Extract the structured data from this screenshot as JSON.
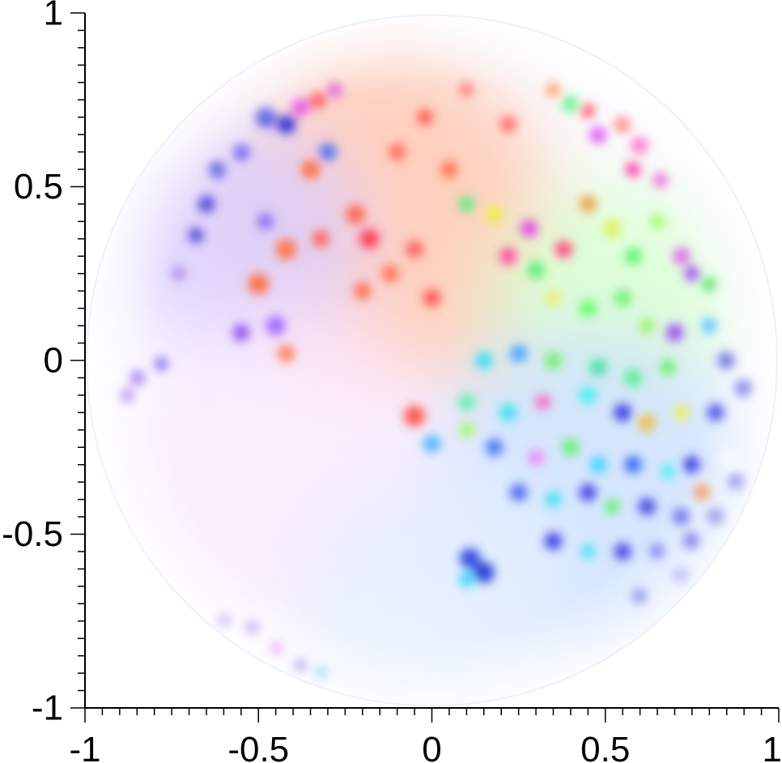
{
  "chart_data": {
    "type": "heatmap",
    "title": "",
    "xlabel": "",
    "ylabel": "",
    "xlim": [
      -1,
      1
    ],
    "ylim": [
      -1,
      1
    ],
    "grid": false,
    "legend": "none",
    "domain_shape": "unit disk",
    "x_ticks": [
      -1,
      -0.5,
      0,
      0.5,
      1
    ],
    "x_tick_labels": [
      "-1",
      "-0.5",
      "0",
      "0.5",
      "1"
    ],
    "y_ticks": [
      1,
      0.5,
      0,
      -0.5,
      -1
    ],
    "y_tick_labels": [
      "1",
      "0.5",
      "0",
      "-0.5",
      "-1"
    ],
    "colors": {
      "axis": "#000000",
      "background": "#ffffff",
      "disk_edge": "#eef0fb"
    },
    "blobs": [
      {
        "x": -0.48,
        "y": 0.7,
        "c": "#3535e0",
        "r": 0.03
      },
      {
        "x": -0.42,
        "y": 0.68,
        "c": "#2a2ad8",
        "r": 0.028
      },
      {
        "x": -0.38,
        "y": 0.73,
        "c": "#e040e0",
        "r": 0.025
      },
      {
        "x": -0.33,
        "y": 0.75,
        "c": "#ff5050",
        "r": 0.025
      },
      {
        "x": -0.28,
        "y": 0.78,
        "c": "#e050d0",
        "r": 0.022
      },
      {
        "x": -0.3,
        "y": 0.6,
        "c": "#4a6af0",
        "r": 0.025
      },
      {
        "x": -0.35,
        "y": 0.55,
        "c": "#ff6f40",
        "r": 0.028
      },
      {
        "x": -0.55,
        "y": 0.6,
        "c": "#6a60f0",
        "r": 0.025
      },
      {
        "x": -0.62,
        "y": 0.55,
        "c": "#5050e0",
        "r": 0.025
      },
      {
        "x": -0.65,
        "y": 0.45,
        "c": "#5040d8",
        "r": 0.025
      },
      {
        "x": -0.68,
        "y": 0.36,
        "c": "#5040d8",
        "r": 0.022
      },
      {
        "x": -0.48,
        "y": 0.4,
        "c": "#8a70f0",
        "r": 0.025
      },
      {
        "x": -0.42,
        "y": 0.32,
        "c": "#ff7040",
        "r": 0.03
      },
      {
        "x": -0.5,
        "y": 0.22,
        "c": "#ff6a3a",
        "r": 0.03
      },
      {
        "x": -0.45,
        "y": 0.1,
        "c": "#9a60ff",
        "r": 0.028
      },
      {
        "x": -0.55,
        "y": 0.08,
        "c": "#8a50f0",
        "r": 0.025
      },
      {
        "x": -0.42,
        "y": 0.02,
        "c": "#ff7a50",
        "r": 0.025
      },
      {
        "x": -0.32,
        "y": 0.35,
        "c": "#ff5f4f",
        "r": 0.025
      },
      {
        "x": -0.22,
        "y": 0.42,
        "c": "#ff6050",
        "r": 0.028
      },
      {
        "x": -0.18,
        "y": 0.35,
        "c": "#ff3050",
        "r": 0.028
      },
      {
        "x": -0.2,
        "y": 0.2,
        "c": "#ff6a4a",
        "r": 0.025
      },
      {
        "x": -0.12,
        "y": 0.25,
        "c": "#ff7050",
        "r": 0.025
      },
      {
        "x": -0.05,
        "y": 0.32,
        "c": "#ff5a60",
        "r": 0.025
      },
      {
        "x": 0.0,
        "y": 0.18,
        "c": "#ff4a4a",
        "r": 0.025
      },
      {
        "x": -0.1,
        "y": 0.6,
        "c": "#ff6a5a",
        "r": 0.025
      },
      {
        "x": -0.02,
        "y": 0.7,
        "c": "#ff4a4a",
        "r": 0.022
      },
      {
        "x": 0.05,
        "y": 0.55,
        "c": "#ff7050",
        "r": 0.025
      },
      {
        "x": 0.1,
        "y": 0.78,
        "c": "#ff8080",
        "r": 0.022
      },
      {
        "x": 0.22,
        "y": 0.68,
        "c": "#ff6a6a",
        "r": 0.025
      },
      {
        "x": 0.35,
        "y": 0.78,
        "c": "#ff8a40",
        "r": 0.022
      },
      {
        "x": 0.4,
        "y": 0.74,
        "c": "#40f080",
        "r": 0.025
      },
      {
        "x": 0.45,
        "y": 0.72,
        "c": "#ff3050",
        "r": 0.022
      },
      {
        "x": 0.48,
        "y": 0.65,
        "c": "#e050f0",
        "r": 0.025
      },
      {
        "x": 0.55,
        "y": 0.68,
        "c": "#ff6060",
        "r": 0.025
      },
      {
        "x": 0.6,
        "y": 0.62,
        "c": "#ff40c0",
        "r": 0.025
      },
      {
        "x": 0.58,
        "y": 0.55,
        "c": "#ff30a0",
        "r": 0.022
      },
      {
        "x": 0.66,
        "y": 0.52,
        "c": "#f050d0",
        "r": 0.022
      },
      {
        "x": 0.1,
        "y": 0.45,
        "c": "#50f080",
        "r": 0.022
      },
      {
        "x": 0.18,
        "y": 0.42,
        "c": "#f0f040",
        "r": 0.025
      },
      {
        "x": 0.22,
        "y": 0.3,
        "c": "#ff40a0",
        "r": 0.025
      },
      {
        "x": 0.28,
        "y": 0.38,
        "c": "#e040e0",
        "r": 0.025
      },
      {
        "x": 0.3,
        "y": 0.26,
        "c": "#50f070",
        "r": 0.025
      },
      {
        "x": 0.38,
        "y": 0.32,
        "c": "#ff4080",
        "r": 0.025
      },
      {
        "x": 0.45,
        "y": 0.45,
        "c": "#f0a040",
        "r": 0.025
      },
      {
        "x": 0.52,
        "y": 0.38,
        "c": "#e0f050",
        "r": 0.025
      },
      {
        "x": 0.58,
        "y": 0.3,
        "c": "#60f070",
        "r": 0.025
      },
      {
        "x": 0.65,
        "y": 0.4,
        "c": "#a0ff60",
        "r": 0.022
      },
      {
        "x": 0.72,
        "y": 0.3,
        "c": "#e060f0",
        "r": 0.025
      },
      {
        "x": 0.75,
        "y": 0.25,
        "c": "#9a40f0",
        "r": 0.022
      },
      {
        "x": 0.8,
        "y": 0.22,
        "c": "#50e060",
        "r": 0.022
      },
      {
        "x": 0.35,
        "y": 0.18,
        "c": "#f0f060",
        "r": 0.022
      },
      {
        "x": 0.45,
        "y": 0.15,
        "c": "#60ff60",
        "r": 0.025
      },
      {
        "x": 0.55,
        "y": 0.18,
        "c": "#70f070",
        "r": 0.025
      },
      {
        "x": 0.62,
        "y": 0.1,
        "c": "#a0f060",
        "r": 0.022
      },
      {
        "x": 0.7,
        "y": 0.08,
        "c": "#9a40f0",
        "r": 0.025
      },
      {
        "x": 0.8,
        "y": 0.1,
        "c": "#50c0ff",
        "r": 0.022
      },
      {
        "x": 0.15,
        "y": 0.0,
        "c": "#30e0f0",
        "r": 0.025
      },
      {
        "x": 0.25,
        "y": 0.02,
        "c": "#40a0ff",
        "r": 0.025
      },
      {
        "x": 0.35,
        "y": 0.0,
        "c": "#70f070",
        "r": 0.025
      },
      {
        "x": 0.48,
        "y": -0.02,
        "c": "#40e0a0",
        "r": 0.025
      },
      {
        "x": 0.58,
        "y": -0.05,
        "c": "#50f090",
        "r": 0.025
      },
      {
        "x": 0.68,
        "y": -0.02,
        "c": "#60f060",
        "r": 0.022
      },
      {
        "x": 0.85,
        "y": 0.0,
        "c": "#5050e0",
        "r": 0.025
      },
      {
        "x": 0.9,
        "y": -0.08,
        "c": "#3535e0",
        "r": 0.025
      },
      {
        "x": 0.1,
        "y": -0.12,
        "c": "#60f0b0",
        "r": 0.025
      },
      {
        "x": 0.22,
        "y": -0.15,
        "c": "#30e0f0",
        "r": 0.025
      },
      {
        "x": 0.32,
        "y": -0.12,
        "c": "#ff60c0",
        "r": 0.022
      },
      {
        "x": 0.45,
        "y": -0.1,
        "c": "#40f0f0",
        "r": 0.025
      },
      {
        "x": 0.55,
        "y": -0.15,
        "c": "#3030e0",
        "r": 0.025
      },
      {
        "x": 0.62,
        "y": -0.18,
        "c": "#f0c040",
        "r": 0.025
      },
      {
        "x": 0.72,
        "y": -0.15,
        "c": "#f0f050",
        "r": 0.022
      },
      {
        "x": 0.82,
        "y": -0.15,
        "c": "#3030e0",
        "r": 0.025
      },
      {
        "x": -0.05,
        "y": -0.16,
        "c": "#ff4a3a",
        "r": 0.03
      },
      {
        "x": 0.0,
        "y": -0.24,
        "c": "#40b0ff",
        "r": 0.025
      },
      {
        "x": 0.1,
        "y": -0.2,
        "c": "#a0ff60",
        "r": 0.022
      },
      {
        "x": 0.18,
        "y": -0.25,
        "c": "#3a70f0",
        "r": 0.025
      },
      {
        "x": 0.3,
        "y": -0.28,
        "c": "#f080f0",
        "r": 0.022
      },
      {
        "x": 0.4,
        "y": -0.25,
        "c": "#60f070",
        "r": 0.025
      },
      {
        "x": 0.48,
        "y": -0.3,
        "c": "#40d0ff",
        "r": 0.025
      },
      {
        "x": 0.58,
        "y": -0.3,
        "c": "#3060f0",
        "r": 0.025
      },
      {
        "x": 0.68,
        "y": -0.32,
        "c": "#50f0f0",
        "r": 0.022
      },
      {
        "x": 0.75,
        "y": -0.3,
        "c": "#3535e0",
        "r": 0.025
      },
      {
        "x": 0.85,
        "y": -0.28,
        "c": "#ffffff",
        "r": 0.02
      },
      {
        "x": 0.88,
        "y": -0.35,
        "c": "#2a2ad8",
        "r": 0.025
      },
      {
        "x": 0.78,
        "y": -0.38,
        "c": "#f08040",
        "r": 0.025
      },
      {
        "x": 0.25,
        "y": -0.38,
        "c": "#4060f0",
        "r": 0.025
      },
      {
        "x": 0.35,
        "y": -0.4,
        "c": "#50e0f0",
        "r": 0.025
      },
      {
        "x": 0.45,
        "y": -0.38,
        "c": "#3a3ae0",
        "r": 0.025
      },
      {
        "x": 0.52,
        "y": -0.42,
        "c": "#60f070",
        "r": 0.022
      },
      {
        "x": 0.62,
        "y": -0.42,
        "c": "#4040e0",
        "r": 0.025
      },
      {
        "x": 0.72,
        "y": -0.45,
        "c": "#5050e0",
        "r": 0.025
      },
      {
        "x": 0.82,
        "y": -0.45,
        "c": "#3030d8",
        "r": 0.025
      },
      {
        "x": 0.35,
        "y": -0.52,
        "c": "#3535e0",
        "r": 0.025
      },
      {
        "x": 0.45,
        "y": -0.55,
        "c": "#50e0f0",
        "r": 0.022
      },
      {
        "x": 0.55,
        "y": -0.55,
        "c": "#4040e0",
        "r": 0.025
      },
      {
        "x": 0.65,
        "y": -0.55,
        "c": "#6060f0",
        "r": 0.022
      },
      {
        "x": 0.75,
        "y": -0.52,
        "c": "#2a2ad8",
        "r": 0.025
      },
      {
        "x": 0.11,
        "y": -0.57,
        "c": "#2a40e0",
        "r": 0.03
      },
      {
        "x": 0.15,
        "y": -0.61,
        "c": "#1a30d0",
        "r": 0.03
      },
      {
        "x": 0.1,
        "y": -0.63,
        "c": "#30d0ff",
        "r": 0.022
      },
      {
        "x": 0.6,
        "y": -0.68,
        "c": "#4050e0",
        "r": 0.022
      },
      {
        "x": 0.72,
        "y": -0.62,
        "c": "#7070f0",
        "r": 0.025
      },
      {
        "x": -0.88,
        "y": -0.1,
        "c": "#a070f0",
        "r": 0.022
      },
      {
        "x": -0.85,
        "y": -0.05,
        "c": "#9060f0",
        "r": 0.022
      },
      {
        "x": -0.78,
        "y": -0.01,
        "c": "#8070f0",
        "r": 0.02
      },
      {
        "x": -0.8,
        "y": 0.2,
        "c": "#f0e0ff",
        "r": 0.02
      },
      {
        "x": -0.73,
        "y": 0.25,
        "c": "#b090f0",
        "r": 0.022
      },
      {
        "x": -0.6,
        "y": -0.75,
        "c": "#8060f0",
        "r": 0.02
      },
      {
        "x": -0.52,
        "y": -0.77,
        "c": "#9060f0",
        "r": 0.02
      },
      {
        "x": -0.45,
        "y": -0.83,
        "c": "#e060f0",
        "r": 0.02
      },
      {
        "x": -0.38,
        "y": -0.88,
        "c": "#6040e0",
        "r": 0.02
      },
      {
        "x": -0.32,
        "y": -0.9,
        "c": "#30a0d0",
        "r": 0.018
      }
    ],
    "background_regions": [
      {
        "x": -0.15,
        "y": 0.4,
        "c": "#ffc8b0",
        "r": 0.5
      },
      {
        "x": 0.5,
        "y": 0.15,
        "c": "#d8ffd0",
        "r": 0.35
      },
      {
        "x": 0.45,
        "y": -0.4,
        "c": "#cfe2ff",
        "r": 0.5
      },
      {
        "x": -0.55,
        "y": 0.35,
        "c": "#dcd0ff",
        "r": 0.35
      },
      {
        "x": -0.4,
        "y": -0.3,
        "c": "#fbeaff",
        "r": 0.45
      },
      {
        "x": 0.0,
        "y": -0.7,
        "c": "#e6f0ff",
        "r": 0.4
      }
    ]
  }
}
